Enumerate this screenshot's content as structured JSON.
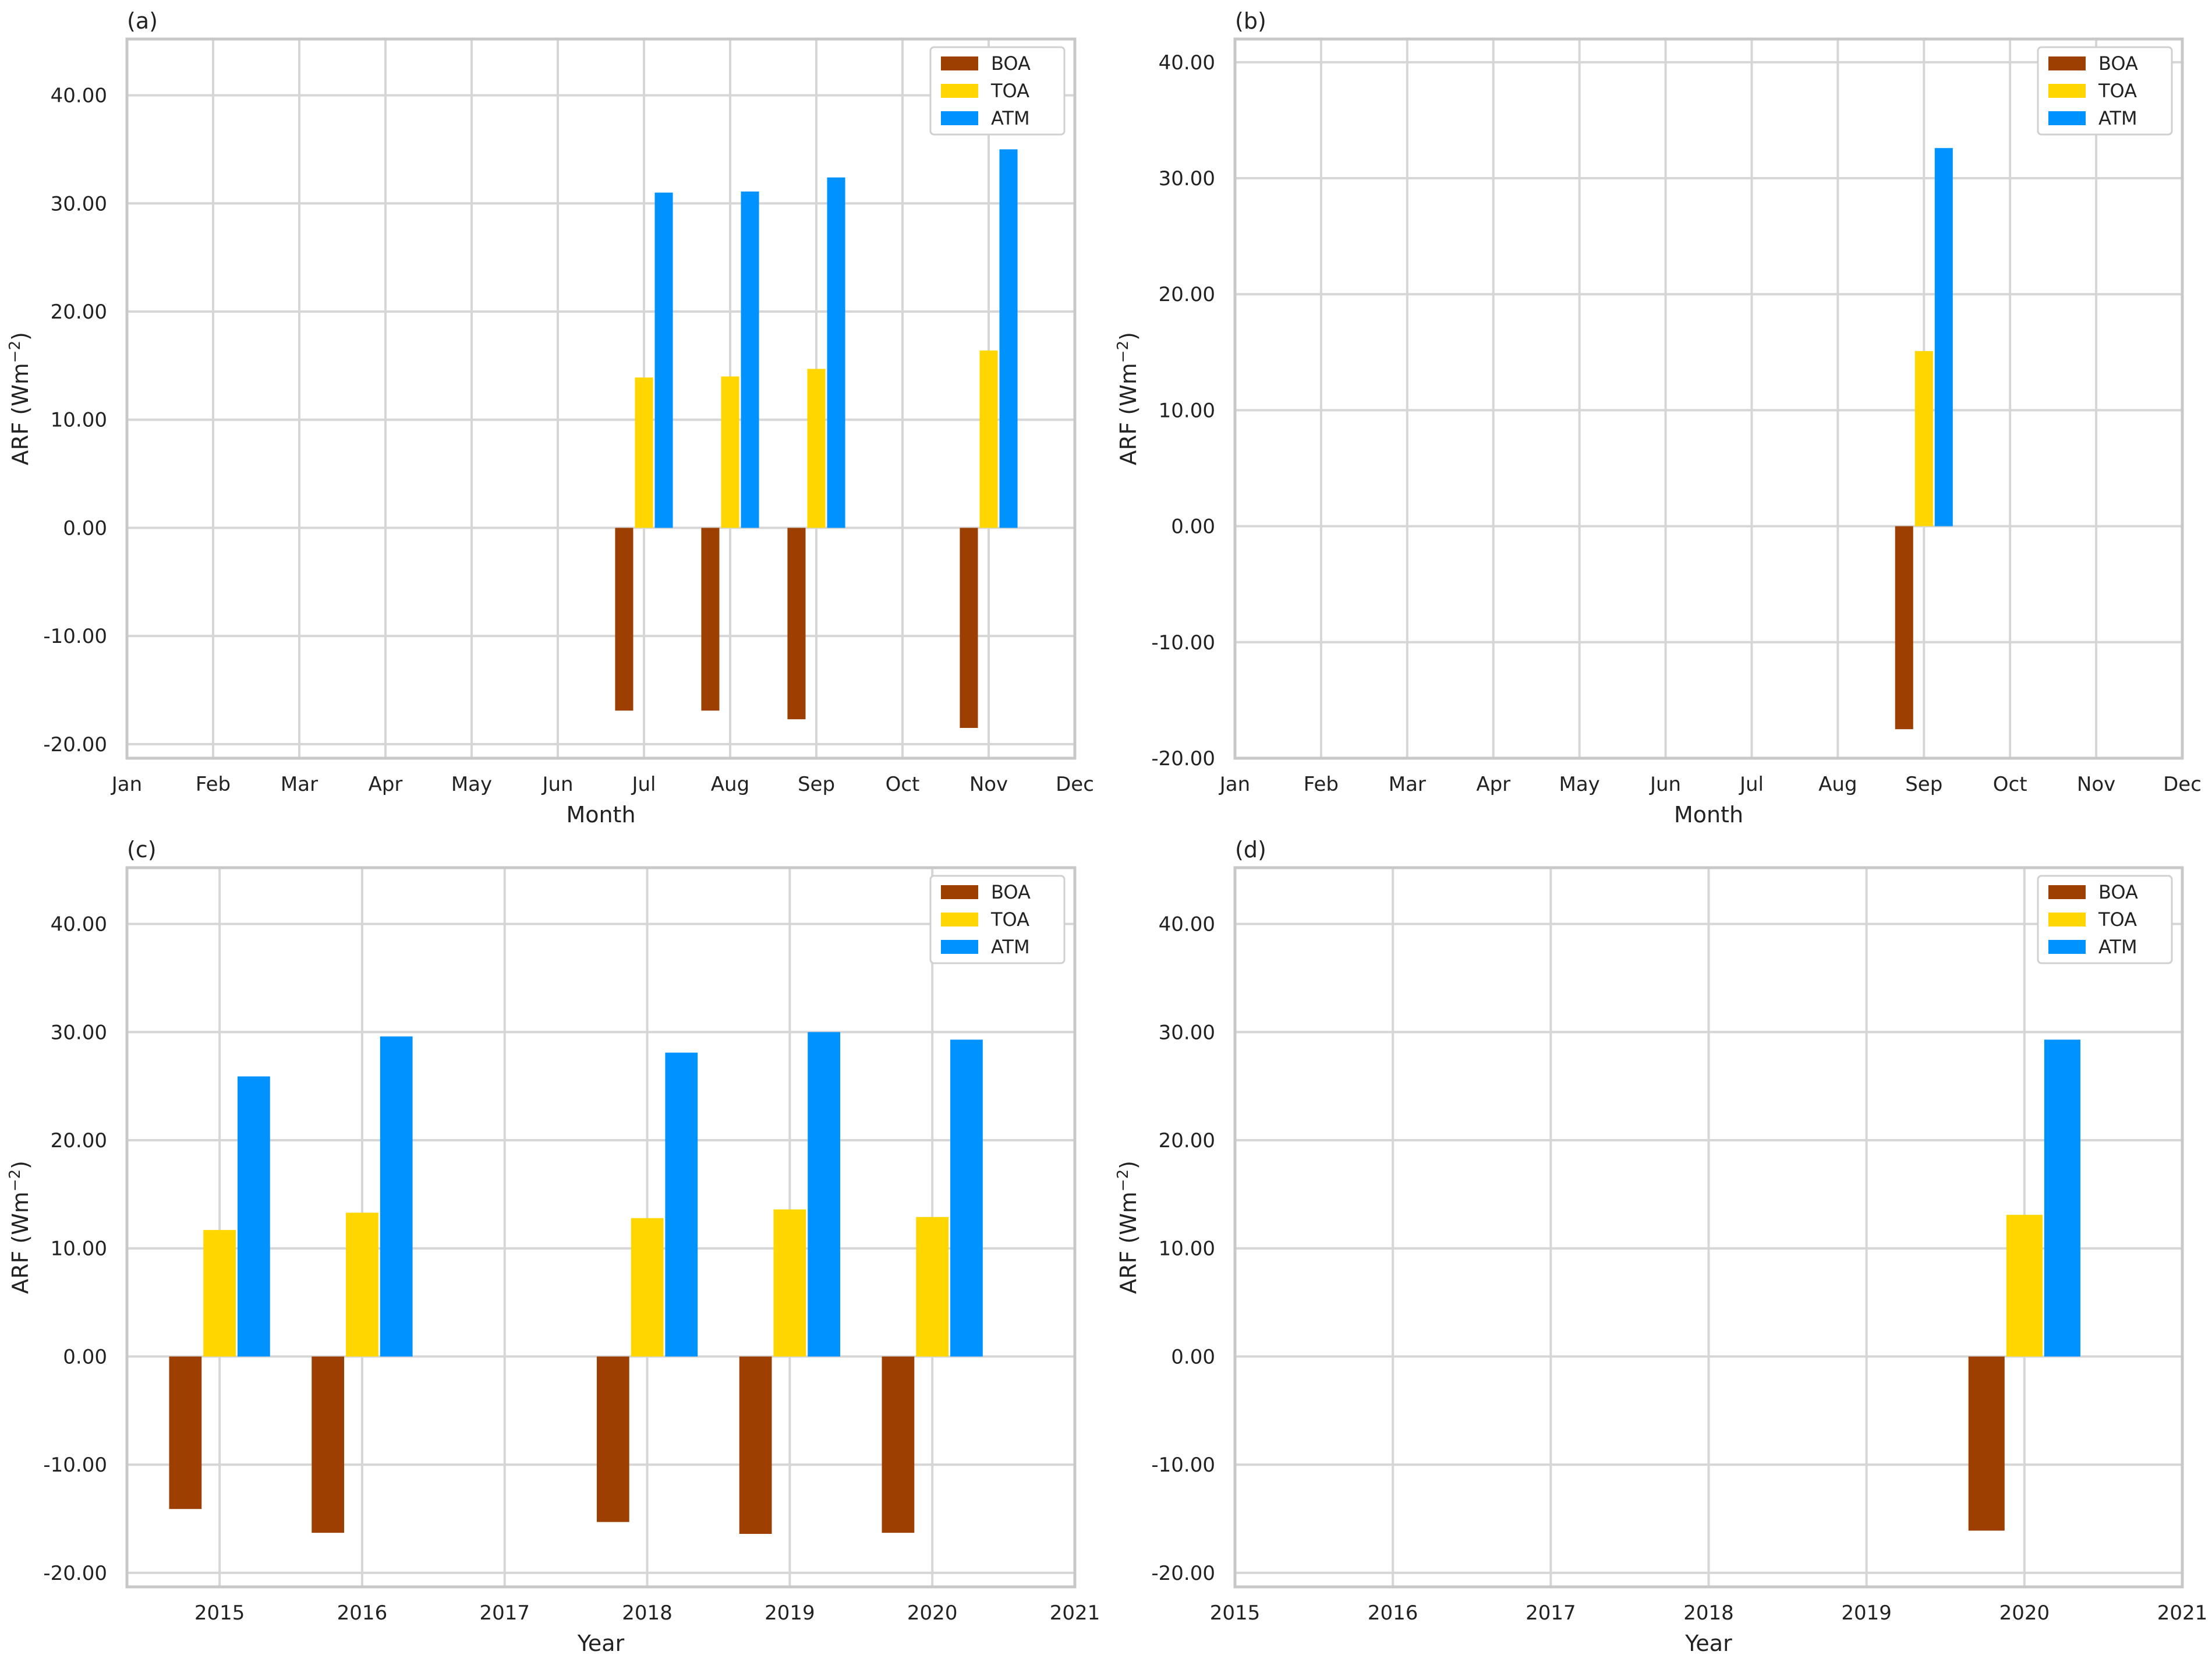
{
  "colors": {
    "BOA": "#9c3f00",
    "TOA": "#ffd600",
    "ATM": "#0092ff"
  },
  "y_ticks": [
    "-20.00",
    "-10.00",
    "0.00",
    "10.00",
    "20.00",
    "30.00",
    "40.00"
  ],
  "chart_data": [
    {
      "panel": "(a)",
      "type": "bar",
      "xlabel": "Month",
      "ylabel": "ARF (Wm",
      "ylabel_sup": "−2",
      "ylabel_end": ")",
      "x_ticks": [
        "Jan",
        "Feb",
        "Mar",
        "Apr",
        "May",
        "Jun",
        "Jul",
        "Aug",
        "Sep",
        "Oct",
        "Nov",
        "Dec"
      ],
      "xlim": [
        0,
        11
      ],
      "ylim": [
        -21.3,
        45.2
      ],
      "legend": [
        "BOA",
        "TOA",
        "ATM"
      ],
      "legend_position": "top-right",
      "bar_width": 0.23,
      "groups": [
        {
          "x": 6,
          "BOA": -16.9,
          "TOA": 13.9,
          "ATM": 31.0
        },
        {
          "x": 7,
          "BOA": -16.9,
          "TOA": 14.0,
          "ATM": 31.1
        },
        {
          "x": 8,
          "BOA": -17.7,
          "TOA": 14.7,
          "ATM": 32.4
        },
        {
          "x": 10,
          "BOA": -18.5,
          "TOA": 16.4,
          "ATM": 35.0
        }
      ]
    },
    {
      "panel": "(b)",
      "type": "bar",
      "xlabel": "Month",
      "ylabel": "ARF (Wm",
      "ylabel_sup": "−2",
      "ylabel_end": ")",
      "x_ticks": [
        "Jan",
        "Feb",
        "Mar",
        "Apr",
        "May",
        "Jun",
        "Jul",
        "Aug",
        "Sep",
        "Oct",
        "Nov",
        "Dec"
      ],
      "xlim": [
        0,
        11
      ],
      "ylim": [
        -20.0,
        42.0
      ],
      "legend": [
        "BOA",
        "TOA",
        "ATM"
      ],
      "legend_position": "top-right",
      "bar_width": 0.23,
      "groups": [
        {
          "x": 8,
          "BOA": -17.5,
          "TOA": 15.1,
          "ATM": 32.6
        }
      ]
    },
    {
      "panel": "(c)",
      "type": "bar",
      "xlabel": "Year",
      "ylabel": "ARF (Wm",
      "ylabel_sup": "−2",
      "ylabel_end": ")",
      "x_ticks": [
        "2015",
        "2016",
        "2017",
        "2018",
        "2019",
        "2020",
        "2021"
      ],
      "xlim": [
        2014.35,
        2021.0
      ],
      "ylim": [
        -21.3,
        45.2
      ],
      "legend": [
        "BOA",
        "TOA",
        "ATM"
      ],
      "legend_position": "top-right",
      "bar_width": 0.24,
      "groups": [
        {
          "x": 2015,
          "BOA": -14.1,
          "TOA": 11.7,
          "ATM": 25.9
        },
        {
          "x": 2016,
          "BOA": -16.3,
          "TOA": 13.3,
          "ATM": 29.6
        },
        {
          "x": 2018,
          "BOA": -15.3,
          "TOA": 12.8,
          "ATM": 28.1
        },
        {
          "x": 2019,
          "BOA": -16.4,
          "TOA": 13.6,
          "ATM": 30.0
        },
        {
          "x": 2020,
          "BOA": -16.3,
          "TOA": 12.9,
          "ATM": 29.3
        }
      ]
    },
    {
      "panel": "(d)",
      "type": "bar",
      "xlabel": "Year",
      "ylabel": "ARF (Wm",
      "ylabel_sup": "−2",
      "ylabel_end": ")",
      "x_ticks": [
        "2015",
        "2016",
        "2017",
        "2018",
        "2019",
        "2020",
        "2021"
      ],
      "xlim": [
        2015,
        2021
      ],
      "ylim": [
        -21.3,
        45.2
      ],
      "legend": [
        "BOA",
        "TOA",
        "ATM"
      ],
      "legend_position": "top-right",
      "bar_width": 0.24,
      "groups": [
        {
          "x": 2020,
          "BOA": -16.1,
          "TOA": 13.1,
          "ATM": 29.3
        }
      ]
    }
  ]
}
